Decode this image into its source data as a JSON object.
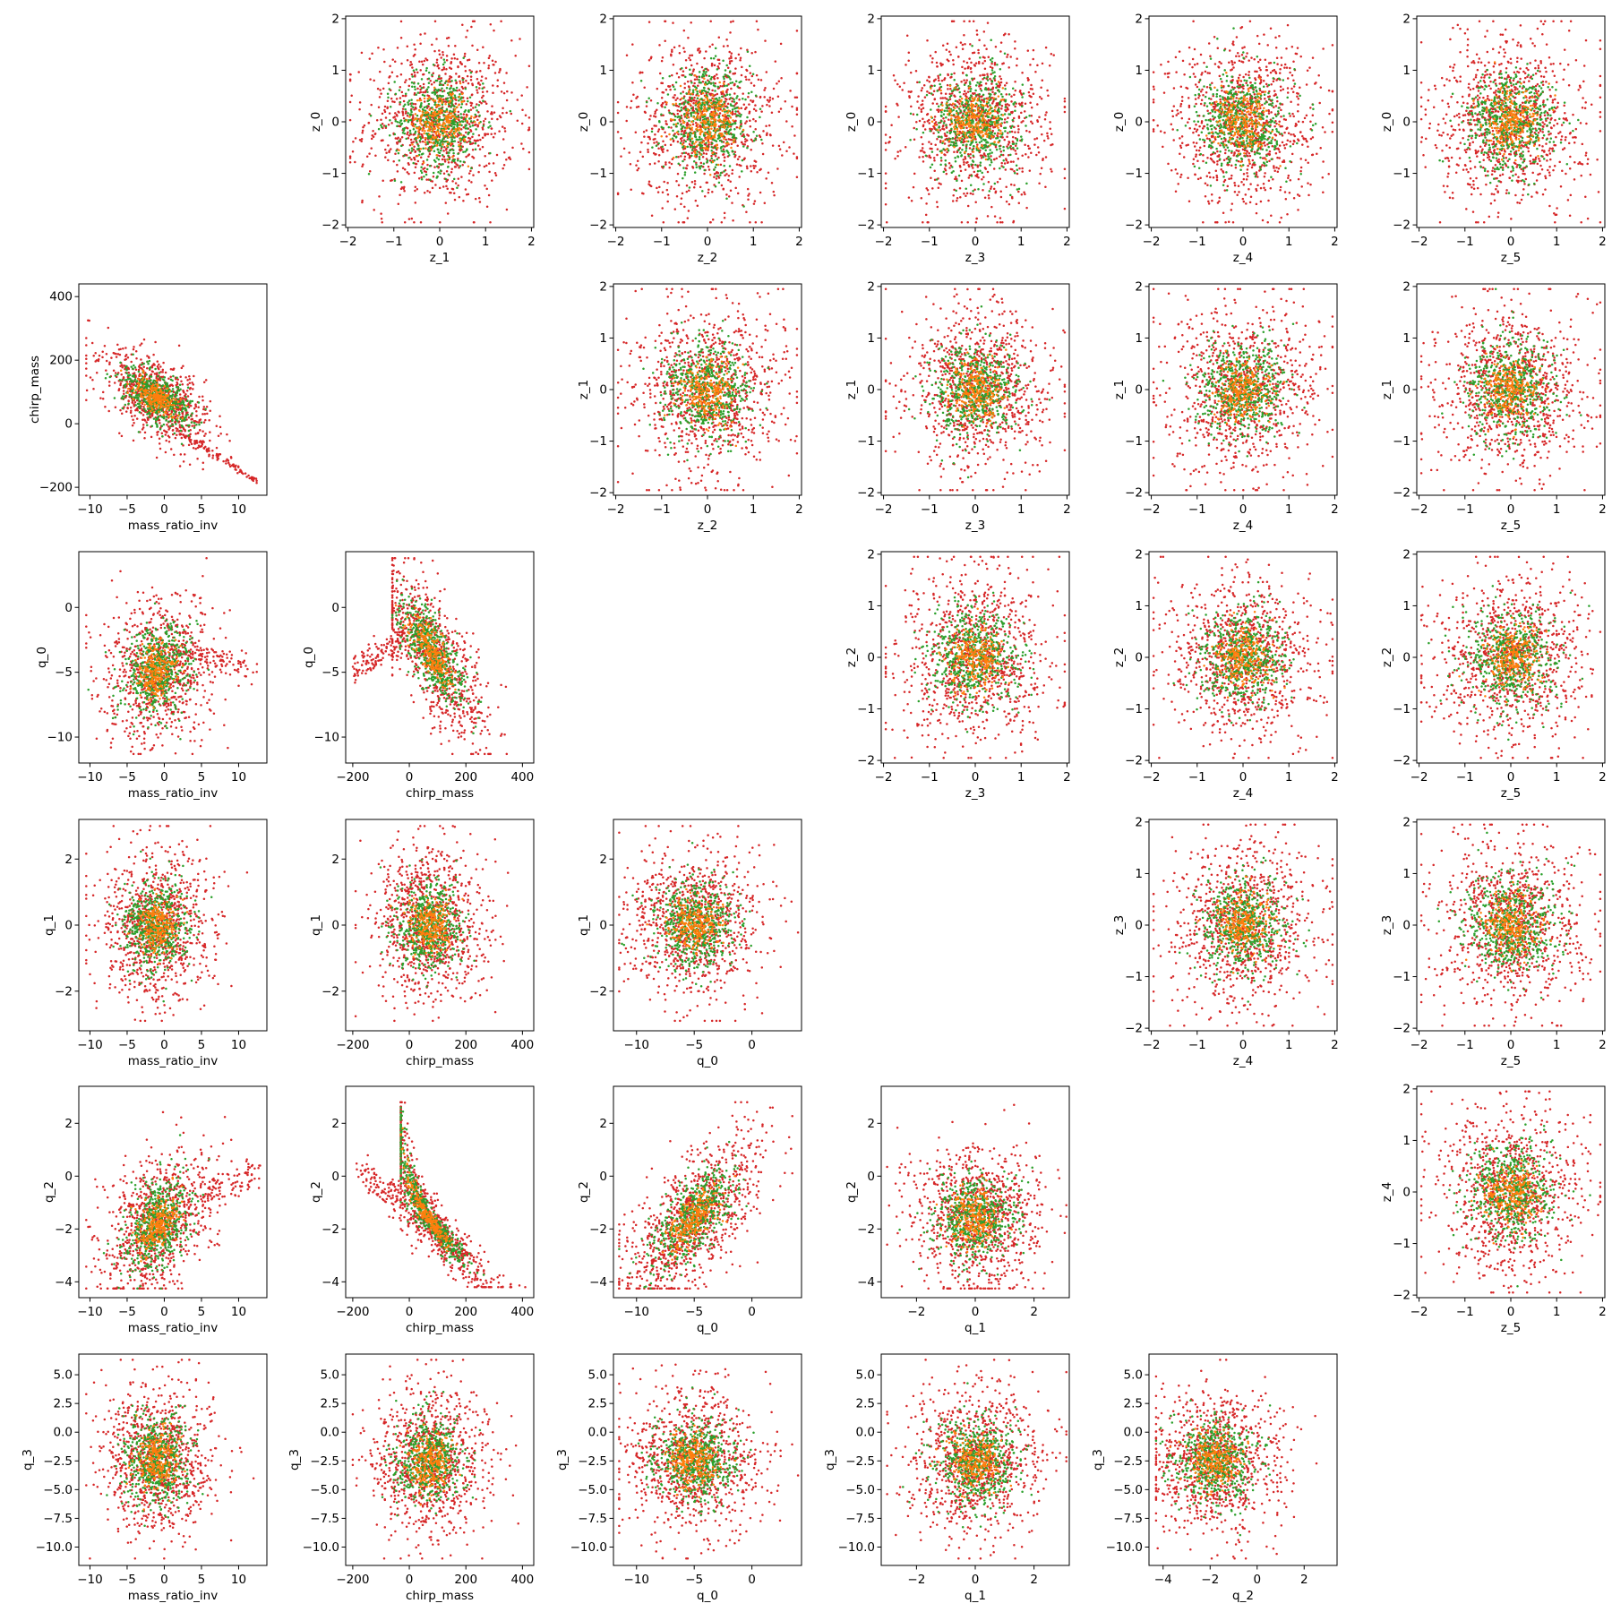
{
  "figure": {
    "type": "scatter-matrix",
    "point_colors": {
      "red": "#d62728",
      "green": "#2ca02c",
      "orange": "#ff7f0e"
    },
    "point_counts": {
      "red": 1200,
      "green": 700,
      "orange": 300
    },
    "variables": {
      "mass_ratio_inv": {
        "label": "mass_ratio_inv",
        "ticks": [
          -10,
          -5,
          0,
          5,
          10
        ],
        "lim": [
          -11.5,
          13.8
        ]
      },
      "chirp_mass": {
        "label": "chirp_mass",
        "ticks": [
          -200,
          0,
          200,
          400
        ],
        "lim": [
          -225,
          440
        ]
      },
      "q_0": {
        "label": "q_0",
        "ticks": [
          -10,
          -5,
          0
        ],
        "lim": [
          -12,
          4.3
        ]
      },
      "q_1": {
        "label": "q_1",
        "ticks": [
          -2,
          0,
          2
        ],
        "lim": [
          -3.2,
          3.2
        ]
      },
      "q_2": {
        "label": "q_2",
        "ticks": [
          -4,
          -2,
          0,
          2
        ],
        "lim": [
          -4.6,
          3.4
        ]
      },
      "q_3": {
        "label": "q_3",
        "ticks": [
          -10.0,
          -7.5,
          -5.0,
          -2.5,
          0.0,
          2.5,
          5.0
        ],
        "tick_labels": [
          "−10.0",
          "−7.5",
          "−5.0",
          "−2.5",
          "0.0",
          "2.5",
          "5.0"
        ],
        "lim": [
          -11.6,
          6.8
        ]
      },
      "z_0": {
        "label": "z_0",
        "ticks": [
          -2,
          -1,
          0,
          1,
          2
        ],
        "lim": [
          -2.05,
          2.05
        ]
      },
      "z_1": {
        "label": "z_1",
        "ticks": [
          -2,
          -1,
          0,
          1,
          2
        ],
        "lim": [
          -2.05,
          2.05
        ]
      },
      "z_2": {
        "label": "z_2",
        "ticks": [
          -2,
          -1,
          0,
          1,
          2
        ],
        "lim": [
          -2.05,
          2.05
        ]
      },
      "z_3": {
        "label": "z_3",
        "ticks": [
          -2,
          -1,
          0,
          1,
          2
        ],
        "lim": [
          -2.05,
          2.05
        ]
      },
      "z_4": {
        "label": "z_4",
        "ticks": [
          -2,
          -1,
          0,
          1,
          2
        ],
        "lim": [
          -2.05,
          2.05
        ]
      },
      "z_5": {
        "label": "z_5",
        "ticks": [
          -2,
          -1,
          0,
          1,
          2
        ],
        "lim": [
          -2.05,
          2.05
        ]
      }
    }
  },
  "chart_data": [
    {
      "type": "scatter",
      "row": 0,
      "col": 1,
      "x": "z_1",
      "y": "z_0",
      "pattern": "gaussian"
    },
    {
      "type": "scatter",
      "row": 0,
      "col": 2,
      "x": "z_2",
      "y": "z_0",
      "pattern": "gaussian"
    },
    {
      "type": "scatter",
      "row": 0,
      "col": 3,
      "x": "z_3",
      "y": "z_0",
      "pattern": "gaussian"
    },
    {
      "type": "scatter",
      "row": 0,
      "col": 4,
      "x": "z_4",
      "y": "z_0",
      "pattern": "gaussian"
    },
    {
      "type": "scatter",
      "row": 0,
      "col": 5,
      "x": "z_5",
      "y": "z_0",
      "pattern": "gaussian"
    },
    {
      "type": "scatter",
      "row": 1,
      "col": 0,
      "x": "mass_ratio_inv",
      "y": "chirp_mass",
      "pattern": "mr_cm"
    },
    {
      "type": "scatter",
      "row": 1,
      "col": 2,
      "x": "z_2",
      "y": "z_1",
      "pattern": "gaussian"
    },
    {
      "type": "scatter",
      "row": 1,
      "col": 3,
      "x": "z_3",
      "y": "z_1",
      "pattern": "gaussian"
    },
    {
      "type": "scatter",
      "row": 1,
      "col": 4,
      "x": "z_4",
      "y": "z_1",
      "pattern": "gaussian"
    },
    {
      "type": "scatter",
      "row": 1,
      "col": 5,
      "x": "z_5",
      "y": "z_1",
      "pattern": "gaussian"
    },
    {
      "type": "scatter",
      "row": 2,
      "col": 0,
      "x": "mass_ratio_inv",
      "y": "q_0",
      "pattern": "mr_q0"
    },
    {
      "type": "scatter",
      "row": 2,
      "col": 1,
      "x": "chirp_mass",
      "y": "q_0",
      "pattern": "cm_q0"
    },
    {
      "type": "scatter",
      "row": 2,
      "col": 3,
      "x": "z_3",
      "y": "z_2",
      "pattern": "gaussian"
    },
    {
      "type": "scatter",
      "row": 2,
      "col": 4,
      "x": "z_4",
      "y": "z_2",
      "pattern": "gaussian"
    },
    {
      "type": "scatter",
      "row": 2,
      "col": 5,
      "x": "z_5",
      "y": "z_2",
      "pattern": "gaussian"
    },
    {
      "type": "scatter",
      "row": 3,
      "col": 0,
      "x": "mass_ratio_inv",
      "y": "q_1",
      "pattern": "mr_q1"
    },
    {
      "type": "scatter",
      "row": 3,
      "col": 1,
      "x": "chirp_mass",
      "y": "q_1",
      "pattern": "cm_q1"
    },
    {
      "type": "scatter",
      "row": 3,
      "col": 2,
      "x": "q_0",
      "y": "q_1",
      "pattern": "q0_q1"
    },
    {
      "type": "scatter",
      "row": 3,
      "col": 4,
      "x": "z_4",
      "y": "z_3",
      "pattern": "gaussian"
    },
    {
      "type": "scatter",
      "row": 3,
      "col": 5,
      "x": "z_5",
      "y": "z_3",
      "pattern": "gaussian"
    },
    {
      "type": "scatter",
      "row": 4,
      "col": 0,
      "x": "mass_ratio_inv",
      "y": "q_2",
      "pattern": "mr_q2"
    },
    {
      "type": "scatter",
      "row": 4,
      "col": 1,
      "x": "chirp_mass",
      "y": "q_2",
      "pattern": "cm_q2"
    },
    {
      "type": "scatter",
      "row": 4,
      "col": 2,
      "x": "q_0",
      "y": "q_2",
      "pattern": "q0_q2"
    },
    {
      "type": "scatter",
      "row": 4,
      "col": 3,
      "x": "q_1",
      "y": "q_2",
      "pattern": "q1_q2"
    },
    {
      "type": "scatter",
      "row": 4,
      "col": 5,
      "x": "z_5",
      "y": "z_4",
      "pattern": "gaussian"
    },
    {
      "type": "scatter",
      "row": 5,
      "col": 0,
      "x": "mass_ratio_inv",
      "y": "q_3",
      "pattern": "mr_q3"
    },
    {
      "type": "scatter",
      "row": 5,
      "col": 1,
      "x": "chirp_mass",
      "y": "q_3",
      "pattern": "cm_q3"
    },
    {
      "type": "scatter",
      "row": 5,
      "col": 2,
      "x": "q_0",
      "y": "q_3",
      "pattern": "q0_q3"
    },
    {
      "type": "scatter",
      "row": 5,
      "col": 3,
      "x": "q_1",
      "y": "q_3",
      "pattern": "q1_q3"
    },
    {
      "type": "scatter",
      "row": 5,
      "col": 4,
      "x": "q_2",
      "y": "q_3",
      "pattern": "q2_q3"
    }
  ]
}
